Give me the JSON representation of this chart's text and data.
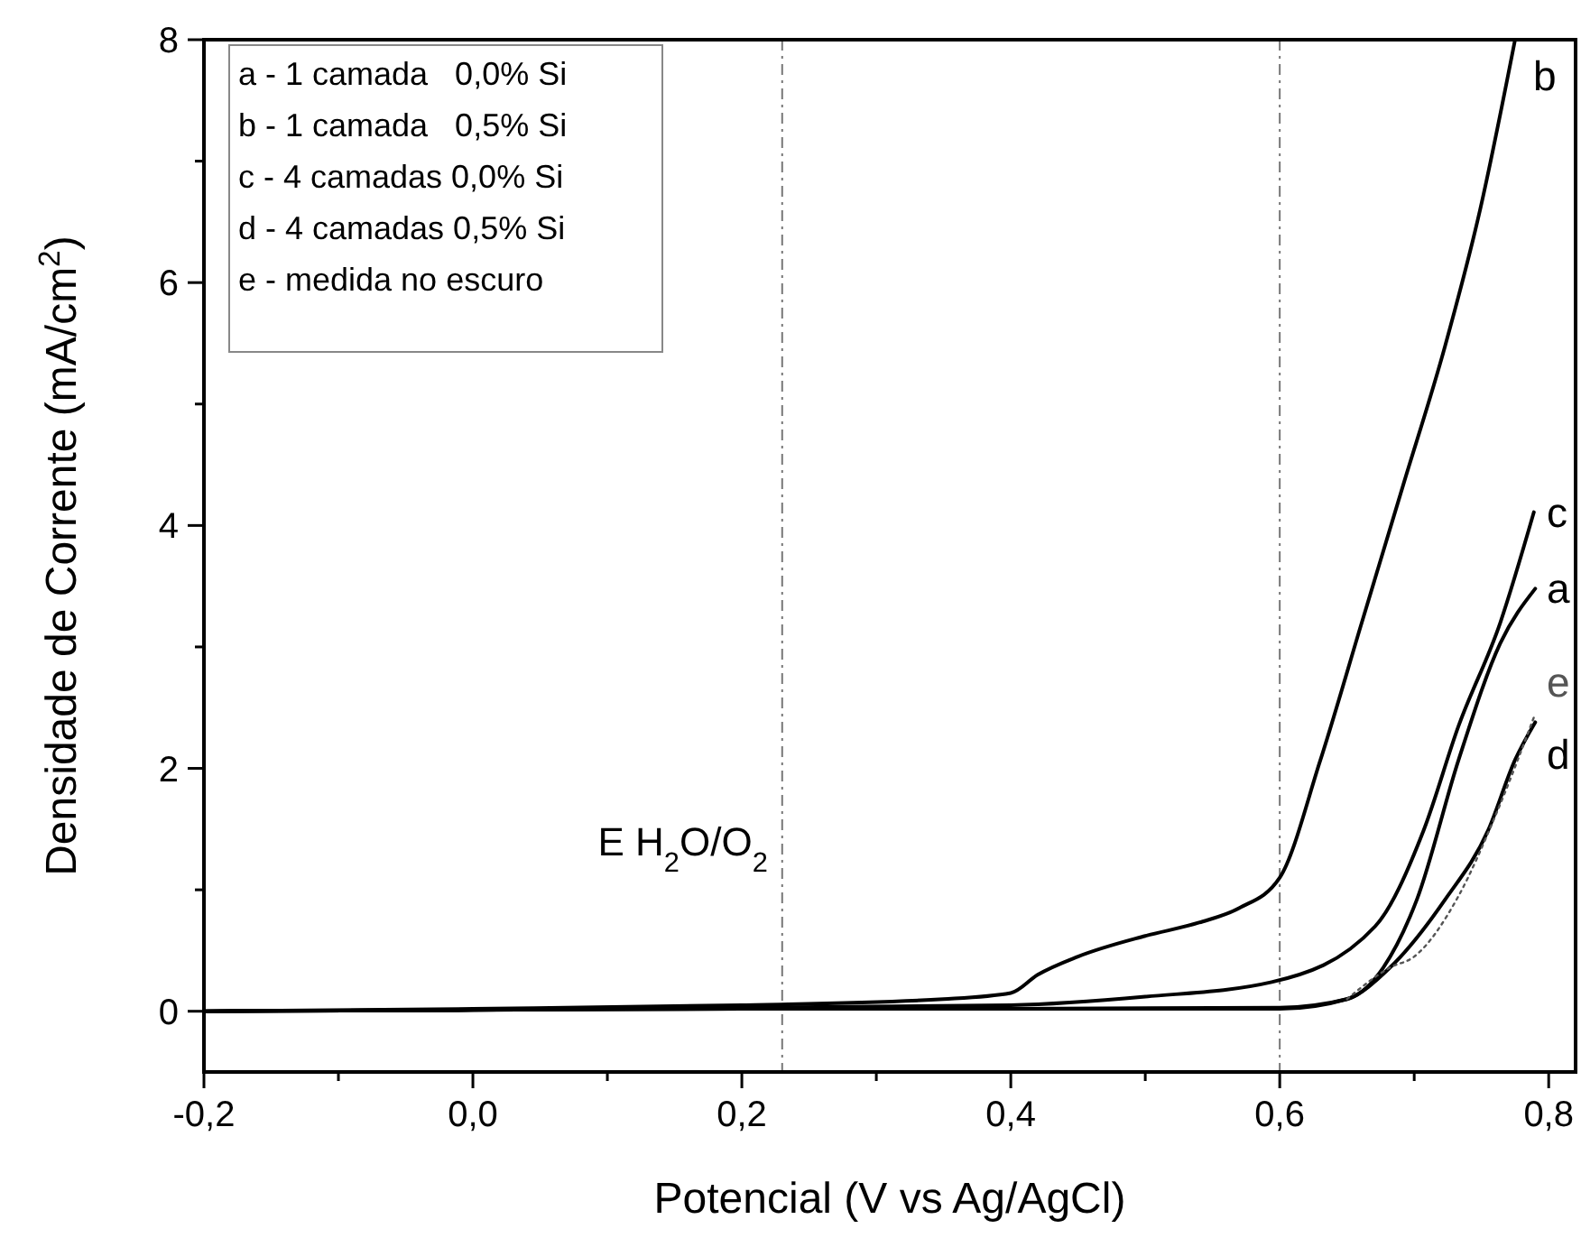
{
  "chart_data": {
    "type": "line",
    "xlabel": "Potencial (V vs Ag/AgCl)",
    "ylabel": "Densidade de Corrente (mA/cm$^{2}$)",
    "xlim": [
      -0.2,
      0.82
    ],
    "ylim": [
      -0.5,
      8
    ],
    "xticks": [
      {
        "value": -0.2,
        "label": "-0,2"
      },
      {
        "value": -0.1,
        "label": null
      },
      {
        "value": 0,
        "label": "0,0"
      },
      {
        "value": 0.1,
        "label": null
      },
      {
        "value": 0.2,
        "label": "0,2"
      },
      {
        "value": 0.3,
        "label": null
      },
      {
        "value": 0.4,
        "label": "0,4"
      },
      {
        "value": 0.5,
        "label": null
      },
      {
        "value": 0.6,
        "label": "0,6"
      },
      {
        "value": 0.7,
        "label": null
      },
      {
        "value": 0.8,
        "label": "0,8"
      }
    ],
    "yticks": [
      0,
      {
        "value": 1,
        "label": null
      },
      2,
      {
        "value": 3,
        "label": null
      },
      4,
      {
        "value": 5,
        "label": null
      },
      6,
      {
        "value": 7,
        "label": null
      },
      8
    ],
    "grid": false,
    "marker": "none",
    "series": [
      {
        "name": "a",
        "color": "#000000",
        "x": [
          -0.2,
          0,
          0.2,
          0.4,
          0.6,
          0.65,
          0.677,
          0.702,
          0.733,
          0.764,
          0.79
        ],
        "values": [
          0,
          0.01,
          0.02,
          0.02,
          0.03,
          0.1,
          0.36,
          0.92,
          2.07,
          3.03,
          3.48
        ]
      },
      {
        "name": "b",
        "color": "#000000",
        "x": [
          -0.2,
          0,
          0.2,
          0.35,
          0.4,
          0.42,
          0.45,
          0.5,
          0.54,
          0.57,
          0.6,
          0.63,
          0.661,
          0.692,
          0.723,
          0.749,
          0.775
        ],
        "values": [
          0,
          0.02,
          0.05,
          0.1,
          0.15,
          0.3,
          0.45,
          0.62,
          0.73,
          0.85,
          1.1,
          2.06,
          3.2,
          4.34,
          5.48,
          6.6,
          8
        ]
      },
      {
        "name": "c",
        "color": "#000000",
        "x": [
          -0.2,
          0,
          0.2,
          0.4,
          0.5,
          0.594,
          0.671,
          0.707,
          0.733,
          0.764,
          0.789
        ],
        "values": [
          0,
          0.01,
          0.03,
          0.05,
          0.12,
          0.24,
          0.7,
          1.49,
          2.35,
          3.2,
          4.11
        ]
      },
      {
        "name": "d",
        "color": "#000000",
        "x": [
          -0.2,
          0,
          0.2,
          0.4,
          0.6,
          0.65,
          0.682,
          0.723,
          0.755,
          0.775,
          0.79
        ],
        "values": [
          0,
          0.01,
          0.02,
          0.02,
          0.02,
          0.1,
          0.36,
          0.92,
          1.49,
          2.07,
          2.38
        ]
      },
      {
        "name": "e",
        "color": "#555555",
        "line_style": "dotted",
        "x": [
          0.65,
          0.682,
          0.7,
          0.733,
          0.76,
          0.79
        ],
        "values": [
          0.1,
          0.36,
          0.45,
          0.95,
          1.6,
          2.45
        ]
      }
    ],
    "annotations": [
      "a - 1 camada   0,0% Si",
      "b - 1 camada   0,5% Si",
      "c - 4 camadas 0,0% Si",
      "d - 4 camadas 0,5% Si",
      "e - medida no escuro"
    ],
    "ref_lines": [
      {
        "axis": "x",
        "value": 0.23,
        "label": "E H$_{2}$O/O$_{2}$",
        "color": "#777777",
        "line_style": "dashdot"
      },
      {
        "axis": "x",
        "value": 0.6,
        "color": "#777777",
        "line_style": "dashdot"
      }
    ]
  }
}
